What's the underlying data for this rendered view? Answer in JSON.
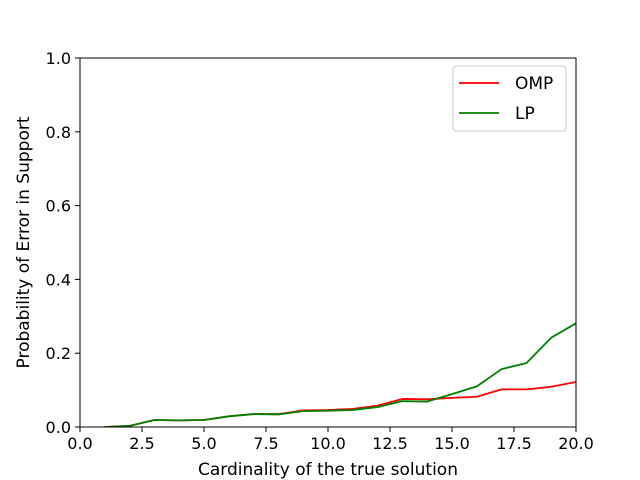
{
  "chart_data": {
    "type": "line",
    "title": "",
    "xlabel": "Cardinality of the true solution",
    "ylabel": "Probability of Error in Support",
    "xlim": [
      0.0,
      20.0
    ],
    "ylim": [
      0.0,
      1.0
    ],
    "xticks": [
      0.0,
      2.5,
      5.0,
      7.5,
      10.0,
      12.5,
      15.0,
      17.5,
      20.0
    ],
    "xtick_labels": [
      "0.0",
      "2.5",
      "5.0",
      "7.5",
      "10.0",
      "12.5",
      "15.0",
      "17.5",
      "20.0"
    ],
    "yticks": [
      0.0,
      0.2,
      0.4,
      0.6,
      0.8,
      1.0
    ],
    "ytick_labels": [
      "0.0",
      "0.2",
      "0.4",
      "0.6",
      "0.8",
      "1.0"
    ],
    "grid": false,
    "legend_position": "top-right",
    "x": [
      1,
      2,
      3,
      4,
      5,
      6,
      7,
      8,
      9,
      10,
      11,
      12,
      13,
      14,
      15,
      16,
      17,
      18,
      19,
      20
    ],
    "series": [
      {
        "name": "OMP",
        "color": "#ff0000",
        "values": [
          0.0,
          0.003,
          0.019,
          0.018,
          0.019,
          0.029,
          0.035,
          0.035,
          0.045,
          0.046,
          0.049,
          0.058,
          0.076,
          0.075,
          0.079,
          0.082,
          0.102,
          0.102,
          0.109,
          0.122
        ]
      },
      {
        "name": "LP",
        "color": "#008000",
        "values": [
          0.0,
          0.003,
          0.019,
          0.018,
          0.019,
          0.029,
          0.035,
          0.034,
          0.043,
          0.044,
          0.046,
          0.054,
          0.07,
          0.069,
          0.089,
          0.11,
          0.157,
          0.173,
          0.242,
          0.281
        ]
      }
    ]
  }
}
